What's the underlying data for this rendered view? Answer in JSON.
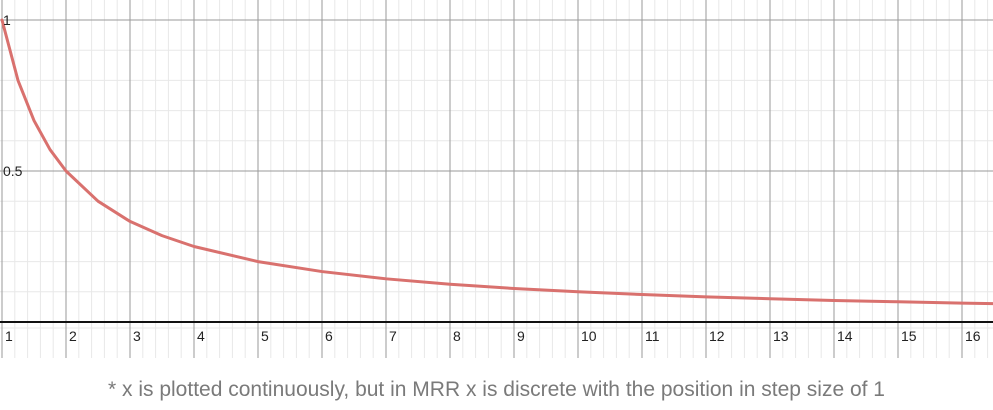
{
  "chart_data": {
    "type": "line",
    "title": "",
    "xlabel": "",
    "ylabel": "",
    "xlim": [
      1,
      16.5
    ],
    "ylim": [
      0,
      1
    ],
    "x_ticks": [
      "1",
      "2",
      "3",
      "4",
      "5",
      "6",
      "7",
      "8",
      "9",
      "10",
      "11",
      "12",
      "13",
      "14",
      "15",
      "16"
    ],
    "y_ticks": [
      "0.5",
      "1"
    ],
    "grid": true,
    "line_color": "#d9716e",
    "series": [
      {
        "x": [
          1,
          1.25,
          1.5,
          1.75,
          2,
          2.5,
          3,
          3.5,
          4,
          5,
          6,
          7,
          8,
          9,
          10,
          11,
          12,
          13,
          14,
          15,
          16,
          16.5
        ],
        "y": [
          1,
          0.8,
          0.667,
          0.571,
          0.5,
          0.4,
          0.333,
          0.286,
          0.25,
          0.2,
          0.167,
          0.143,
          0.125,
          0.111,
          0.1,
          0.091,
          0.083,
          0.077,
          0.071,
          0.067,
          0.0625,
          0.061
        ]
      }
    ]
  },
  "caption": "* x is plotted continuously, but in MRR x is discrete with the position in step size of 1"
}
